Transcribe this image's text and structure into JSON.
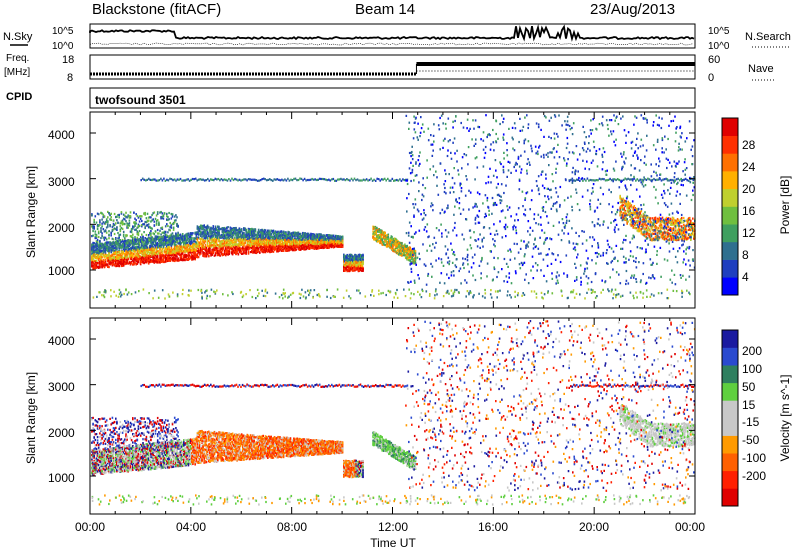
{
  "header": {
    "title": "Blackstone (fitACF)",
    "beam": "Beam 14",
    "date": "23/Aug/2013"
  },
  "summary": {
    "nsky_label": "N.Sky",
    "nsearch_label": "N.Search",
    "nsky_ticks": [
      "10^5",
      "10^0"
    ],
    "nsearch_ticks": [
      "10^5",
      "10^0"
    ],
    "freq_label_1": "Freq.",
    "freq_label_2": "[MHz]",
    "freq_ticks": [
      "18",
      "8"
    ],
    "nave_label": "Nave",
    "nave_ticks": [
      "60",
      "0"
    ],
    "cpid_label": "CPID",
    "cpid_value": "twofsound 3501"
  },
  "colors": {
    "power_scale": [
      "#0000ff",
      "#1f3fbf",
      "#2f6f8f",
      "#3f9f5f",
      "#6fbf3f",
      "#bfcf2f",
      "#ffb000",
      "#ff7000",
      "#ff3000",
      "#e00000"
    ],
    "velocity_scale": [
      "#1a1aa0",
      "#2a4ad0",
      "#2f7f5f",
      "#5fcf3f",
      "#c8c8c8",
      "#c8c8c8",
      "#ff9a00",
      "#ff6000",
      "#ff2000",
      "#e00000"
    ]
  },
  "chart_data": [
    {
      "type": "heatmap",
      "ylabel": "Slant Range [km]",
      "yticks": [
        "1000",
        "2000",
        "3000",
        "4000"
      ],
      "colorbar_label": "Power [dB]",
      "colorbar_ticks": [
        "4",
        "8",
        "12",
        "16",
        "20",
        "24",
        "28"
      ],
      "colorbar_range": [
        0,
        32
      ]
    },
    {
      "type": "heatmap",
      "ylabel": "Slant Range [km]",
      "yticks": [
        "1000",
        "2000",
        "3000",
        "4000"
      ],
      "colorbar_label": "Velocity [m s^-1]",
      "colorbar_ticks": [
        "200",
        "100",
        "50",
        "15",
        "-15",
        "-50",
        "-100",
        "-200"
      ],
      "xlabel": "Time UT",
      "xticks": [
        "00:00",
        "04:00",
        "08:00",
        "12:00",
        "16:00",
        "20:00",
        "00:00"
      ]
    }
  ]
}
